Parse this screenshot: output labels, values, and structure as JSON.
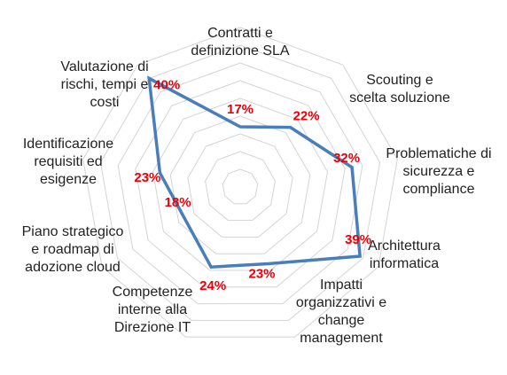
{
  "chart_data": {
    "type": "radar",
    "title": "",
    "categories": [
      "Contratti e definizione SLA",
      "Scouting e scelta soluzione",
      "Problematiche di sicurezza e compliance",
      "Architettura informatica",
      "Impatti organizzativi e change management",
      "Competenze interne alla Direzione IT",
      "Piano strategico e roadmap di adozione cloud",
      "Identificazione requisiti ed esigenze",
      "Valutazione di rischi, tempi e costi"
    ],
    "category_lines": [
      [
        "Contratti e",
        "definizione SLA"
      ],
      [
        "Scouting e",
        "scelta soluzione"
      ],
      [
        "Problematiche di",
        "sicurezza e",
        "compliance"
      ],
      [
        "Architettura",
        "informatica"
      ],
      [
        "Impatti",
        "organizzativi e",
        "change",
        "management"
      ],
      [
        "Competenze",
        "interne alla",
        "Direzione IT"
      ],
      [
        "Piano strategico",
        "e roadmap di",
        "adozione cloud"
      ],
      [
        "Identificazione",
        "requisiti ed",
        "esigenze"
      ],
      [
        "Valutazione di",
        "rischi, tempi e",
        "costi"
      ]
    ],
    "values": [
      17,
      22,
      32,
      39,
      23,
      24,
      18,
      23,
      40
    ],
    "value_labels": [
      "17%",
      "22%",
      "32%",
      "39%",
      "23%",
      "24%",
      "18%",
      "23%",
      "40%"
    ],
    "rmax": 45,
    "grid_levels": 9,
    "grid": true,
    "legend": "none",
    "colors": {
      "series": "#4a7ebb",
      "grid": "#d4d4d4",
      "value_label": "#e8000b",
      "category_label": "#222222"
    }
  }
}
